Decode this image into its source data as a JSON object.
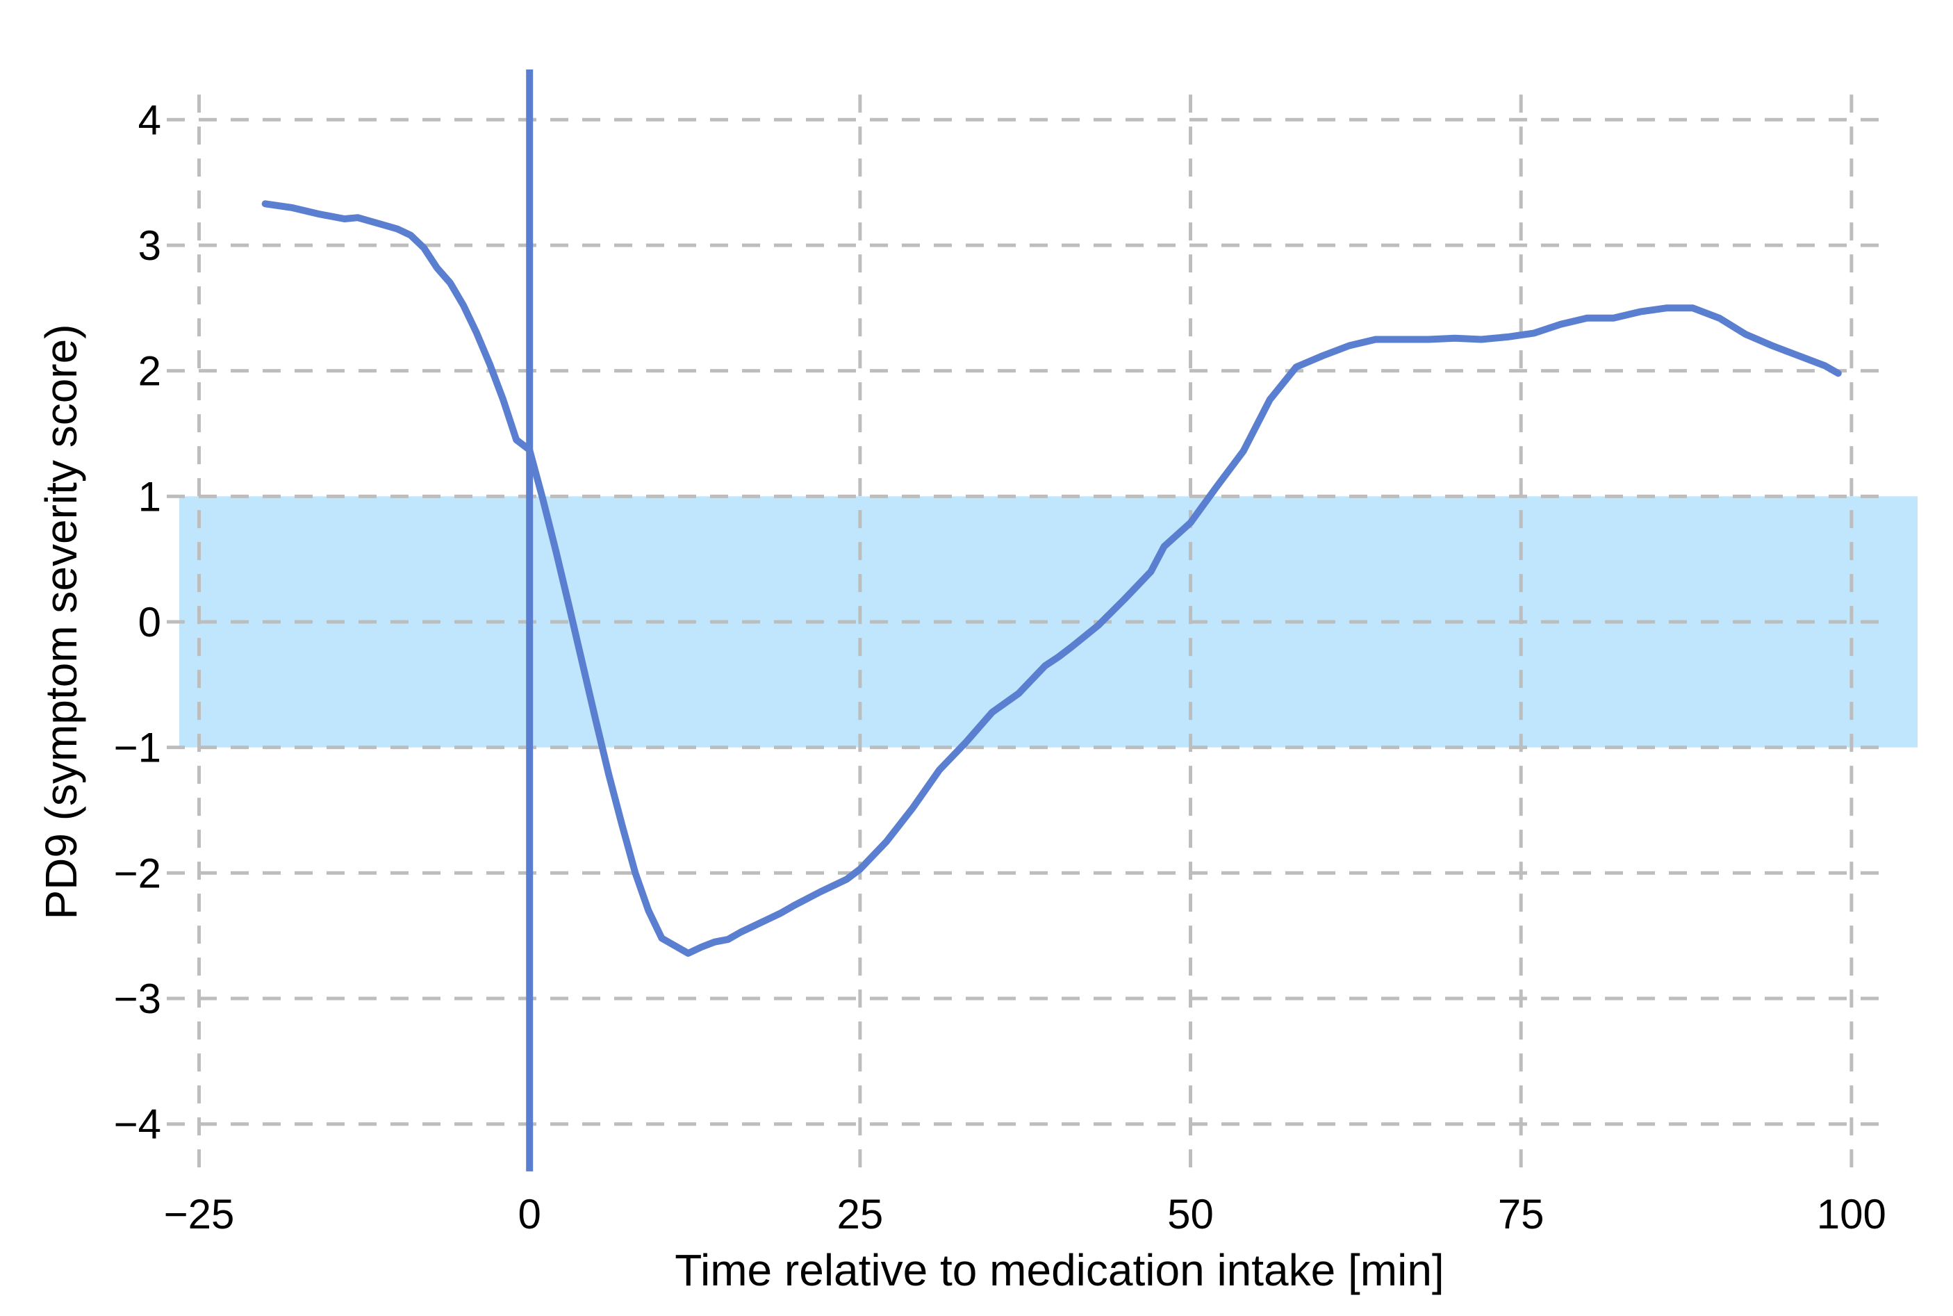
{
  "chart_data": {
    "type": "line",
    "xlabel": "Time relative to medication intake [min]",
    "ylabel": "PD9 (symptom severity score)",
    "xlim": [
      -26.5,
      105
    ],
    "ylim": [
      -4.4,
      4.4
    ],
    "x_ticks": [
      -25,
      0,
      25,
      50,
      75,
      100
    ],
    "y_ticks": [
      -4,
      -3,
      -2,
      -1,
      0,
      1,
      2,
      3,
      4
    ],
    "x_tick_labels": [
      "−25",
      "0",
      "25",
      "50",
      "75",
      "100"
    ],
    "y_tick_labels": [
      "−4",
      "−3",
      "−2",
      "−1",
      "0",
      "1",
      "2",
      "3",
      "4"
    ],
    "grid": true,
    "band": {
      "y_from": -1,
      "y_to": 1,
      "color": "#bfe6fc"
    },
    "vline": {
      "x": 0,
      "color": "#5b7fd0"
    },
    "line_color": "#5b7fd0",
    "grid_color": "#bdbdbd",
    "series": [
      {
        "x": [
          -20,
          -18,
          -16,
          -14,
          -13,
          -11,
          -10,
          -9,
          -8,
          -7,
          -6,
          -5,
          -4,
          -3,
          -2,
          -1,
          0,
          1,
          2,
          3,
          4,
          5,
          6,
          7,
          8,
          9,
          10,
          11,
          12,
          13,
          14,
          15,
          16,
          17,
          18,
          19,
          20,
          22,
          24,
          25,
          27,
          29,
          31,
          33,
          35,
          37,
          39,
          40,
          41,
          43,
          45,
          47,
          48,
          50,
          52,
          54,
          56,
          58,
          60,
          62,
          64,
          66,
          68,
          70,
          72,
          74,
          76,
          78,
          80,
          82,
          84,
          86,
          88,
          90,
          92,
          94,
          96,
          98,
          99
        ],
        "y": [
          3.33,
          3.3,
          3.25,
          3.21,
          3.22,
          3.16,
          3.13,
          3.08,
          2.98,
          2.82,
          2.7,
          2.52,
          2.3,
          2.05,
          1.77,
          1.45,
          1.37,
          0.98,
          0.56,
          0.12,
          -0.33,
          -0.78,
          -1.22,
          -1.62,
          -2.0,
          -2.3,
          -2.52,
          -2.58,
          -2.64,
          -2.59,
          -2.55,
          -2.53,
          -2.47,
          -2.42,
          -2.37,
          -2.32,
          -2.26,
          -2.15,
          -2.05,
          -1.97,
          -1.75,
          -1.48,
          -1.18,
          -0.96,
          -0.72,
          -0.57,
          -0.35,
          -0.28,
          -0.2,
          -0.03,
          0.18,
          0.4,
          0.6,
          0.79,
          1.08,
          1.36,
          1.77,
          2.03,
          2.12,
          2.2,
          2.25,
          2.25,
          2.25,
          2.26,
          2.25,
          2.27,
          2.3,
          2.37,
          2.42,
          2.42,
          2.47,
          2.5,
          2.5,
          2.42,
          2.29,
          2.2,
          2.12,
          2.04,
          1.98
        ]
      }
    ]
  }
}
